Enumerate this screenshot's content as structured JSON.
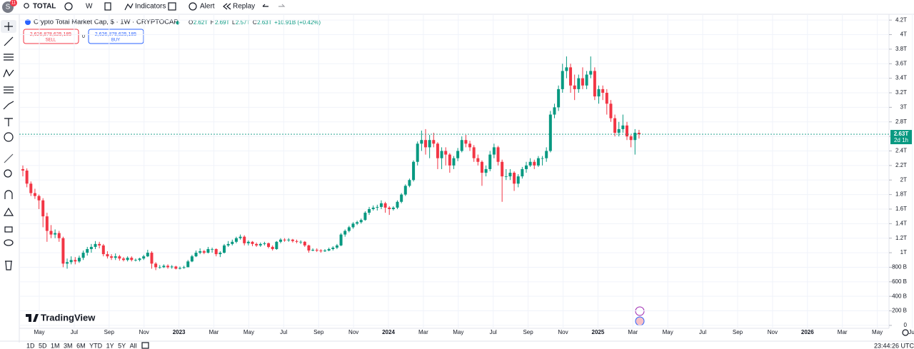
{
  "toolbar": {
    "avatar_badge": "11",
    "symbol": "TOTAL",
    "interval": "W",
    "indicators": "Indicators",
    "alert": "Alert",
    "replay": "Replay"
  },
  "legend": {
    "title": "Crypto Total Market Cap, $ · 1W · CRYPTOCAP",
    "items": [
      {
        "label": "O",
        "value": "2.62T"
      },
      {
        "label": "H",
        "value": "2.69T"
      },
      {
        "label": "L",
        "value": "2.57T"
      },
      {
        "label": "C",
        "value": "2.63T"
      }
    ],
    "change": "+10.91B (+0.42%)"
  },
  "trade": {
    "sell_price": "2,626,878,625,185",
    "sell_label": "SELL",
    "spread": "0",
    "buy_price": "2,626,878,625,185",
    "buy_label": "BUY"
  },
  "logo": "TradingView",
  "ranges": [
    "1D",
    "5D",
    "1M",
    "3M",
    "6M",
    "YTD",
    "1Y",
    "5Y",
    "All"
  ],
  "clock": "23:44:26 UTC",
  "chart_data": {
    "type": "candlestick",
    "up_color": "#089981",
    "down_color": "#f23645",
    "ylim": [
      -0.04,
      4.28
    ],
    "yticks": [
      0,
      {
        "value": 0.2,
        "label": "200 B"
      },
      {
        "value": 0.4,
        "label": "400 B"
      },
      {
        "value": 0.6,
        "label": "600 B"
      },
      {
        "value": 0.8,
        "label": "800 B"
      },
      {
        "value": 1,
        "label": "1T"
      },
      {
        "value": 1.2,
        "label": "1.2T"
      },
      {
        "value": 1.4,
        "label": "1.4T"
      },
      {
        "value": 1.6,
        "label": "1.6T"
      },
      {
        "value": 1.8,
        "label": "1.8T"
      },
      {
        "value": 2,
        "label": "2T"
      },
      {
        "value": 2.2,
        "label": "2.2T"
      },
      {
        "value": 2.4,
        "label": "2.4T"
      },
      {
        "value": 2.6,
        "label": "2.6T"
      },
      {
        "value": 2.8,
        "label": "2.8T"
      },
      {
        "value": 3,
        "label": "3T"
      },
      {
        "value": 3.2,
        "label": "3.2T"
      },
      {
        "value": 3.4,
        "label": "3.4T"
      },
      {
        "value": 3.6,
        "label": "3.6T"
      },
      {
        "value": 3.8,
        "label": "3.8T"
      },
      {
        "value": 4,
        "label": "4T"
      },
      {
        "value": 4.2,
        "label": "4.2T"
      }
    ],
    "xtick_labels": [
      "May",
      "Jul",
      "Sep",
      "Nov",
      "2023",
      "Mar",
      "May",
      "Jul",
      "Sep",
      "Nov",
      "2024",
      "Mar",
      "May",
      "Jul",
      "Sep",
      "Nov",
      "2025",
      "Mar",
      "May",
      "Jul",
      "Sep",
      "Nov",
      "2026",
      "Mar",
      "May",
      "Jul"
    ],
    "last_price": {
      "value": 2.63,
      "label": "2.63T",
      "countdown": "2d 1h"
    },
    "ohlc": [
      [
        2.15,
        2.2,
        2.05,
        2.13
      ],
      [
        2.13,
        2.16,
        1.9,
        1.95
      ],
      [
        1.95,
        1.98,
        1.78,
        1.82
      ],
      [
        1.82,
        1.88,
        1.74,
        1.78
      ],
      [
        1.78,
        1.8,
        1.6,
        1.72
      ],
      [
        1.72,
        1.75,
        1.35,
        1.5
      ],
      [
        1.5,
        1.55,
        1.15,
        1.3
      ],
      [
        1.3,
        1.38,
        1.2,
        1.25
      ],
      [
        1.25,
        1.32,
        1.2,
        1.27
      ],
      [
        1.27,
        1.3,
        1.15,
        1.2
      ],
      [
        1.2,
        1.22,
        0.8,
        0.85
      ],
      [
        0.85,
        0.92,
        0.78,
        0.87
      ],
      [
        0.87,
        0.95,
        0.84,
        0.9
      ],
      [
        0.9,
        0.94,
        0.84,
        0.88
      ],
      [
        0.88,
        0.96,
        0.86,
        0.93
      ],
      [
        0.93,
        1.03,
        0.9,
        1.0
      ],
      [
        1.0,
        1.08,
        0.96,
        1.05
      ],
      [
        1.05,
        1.12,
        1.0,
        1.08
      ],
      [
        1.08,
        1.16,
        1.05,
        1.12
      ],
      [
        1.12,
        1.15,
        1.06,
        1.1
      ],
      [
        1.1,
        1.12,
        0.95,
        0.98
      ],
      [
        0.98,
        1.02,
        0.92,
        0.95
      ],
      [
        0.95,
        0.98,
        0.9,
        0.93
      ],
      [
        0.93,
        0.99,
        0.9,
        0.95
      ],
      [
        0.95,
        0.97,
        0.89,
        0.92
      ],
      [
        0.92,
        0.94,
        0.88,
        0.9
      ],
      [
        0.9,
        0.95,
        0.88,
        0.93
      ],
      [
        0.93,
        0.95,
        0.88,
        0.9
      ],
      [
        0.9,
        0.92,
        0.88,
        0.9
      ],
      [
        0.9,
        0.93,
        0.88,
        0.92
      ],
      [
        0.92,
        0.97,
        0.9,
        0.95
      ],
      [
        0.95,
        1.04,
        0.94,
        1.0
      ],
      [
        1.0,
        1.02,
        0.78,
        0.85
      ],
      [
        0.85,
        0.87,
        0.76,
        0.8
      ],
      [
        0.8,
        0.83,
        0.78,
        0.8
      ],
      [
        0.8,
        0.84,
        0.79,
        0.82
      ],
      [
        0.82,
        0.84,
        0.78,
        0.8
      ],
      [
        0.8,
        0.83,
        0.78,
        0.81
      ],
      [
        0.81,
        0.82,
        0.77,
        0.78
      ],
      [
        0.78,
        0.81,
        0.77,
        0.79
      ],
      [
        0.79,
        0.82,
        0.78,
        0.8
      ],
      [
        0.8,
        0.9,
        0.8,
        0.88
      ],
      [
        0.88,
        0.97,
        0.87,
        0.95
      ],
      [
        0.95,
        1.03,
        0.94,
        1.0
      ],
      [
        1.0,
        1.06,
        0.98,
        1.02
      ],
      [
        1.02,
        1.04,
        0.98,
        1.0
      ],
      [
        1.0,
        1.08,
        0.99,
        1.05
      ],
      [
        1.05,
        1.07,
        1.0,
        1.05
      ],
      [
        1.05,
        1.06,
        0.95,
        0.98
      ],
      [
        0.98,
        1.02,
        0.94,
        1.0
      ],
      [
        1.0,
        1.12,
        0.99,
        1.1
      ],
      [
        1.1,
        1.16,
        1.08,
        1.12
      ],
      [
        1.12,
        1.18,
        1.1,
        1.15
      ],
      [
        1.15,
        1.22,
        1.13,
        1.2
      ],
      [
        1.2,
        1.25,
        1.18,
        1.22
      ],
      [
        1.22,
        1.24,
        1.1,
        1.13
      ],
      [
        1.13,
        1.17,
        1.1,
        1.15
      ],
      [
        1.15,
        1.16,
        1.09,
        1.12
      ],
      [
        1.12,
        1.14,
        1.08,
        1.1
      ],
      [
        1.1,
        1.14,
        1.08,
        1.12
      ],
      [
        1.12,
        1.15,
        1.1,
        1.13
      ],
      [
        1.13,
        1.14,
        1.06,
        1.08
      ],
      [
        1.08,
        1.1,
        1.03,
        1.05
      ],
      [
        1.05,
        1.16,
        1.04,
        1.15
      ],
      [
        1.15,
        1.2,
        1.13,
        1.18
      ],
      [
        1.18,
        1.2,
        1.15,
        1.17
      ],
      [
        1.17,
        1.2,
        1.15,
        1.18
      ],
      [
        1.18,
        1.19,
        1.14,
        1.16
      ],
      [
        1.16,
        1.18,
        1.13,
        1.15
      ],
      [
        1.15,
        1.17,
        1.12,
        1.15
      ],
      [
        1.15,
        1.16,
        1.08,
        1.1
      ],
      [
        1.1,
        1.11,
        1.0,
        1.03
      ],
      [
        1.03,
        1.06,
        1.02,
        1.04
      ],
      [
        1.04,
        1.06,
        1.01,
        1.03
      ],
      [
        1.03,
        1.05,
        1.0,
        1.02
      ],
      [
        1.02,
        1.05,
        1.01,
        1.03
      ],
      [
        1.03,
        1.07,
        1.02,
        1.05
      ],
      [
        1.05,
        1.09,
        1.03,
        1.07
      ],
      [
        1.07,
        1.12,
        1.05,
        1.1
      ],
      [
        1.1,
        1.27,
        1.09,
        1.25
      ],
      [
        1.25,
        1.32,
        1.22,
        1.3
      ],
      [
        1.3,
        1.37,
        1.28,
        1.35
      ],
      [
        1.35,
        1.42,
        1.33,
        1.4
      ],
      [
        1.4,
        1.44,
        1.38,
        1.42
      ],
      [
        1.42,
        1.47,
        1.4,
        1.45
      ],
      [
        1.45,
        1.57,
        1.44,
        1.55
      ],
      [
        1.55,
        1.63,
        1.52,
        1.6
      ],
      [
        1.6,
        1.65,
        1.58,
        1.62
      ],
      [
        1.62,
        1.66,
        1.58,
        1.63
      ],
      [
        1.63,
        1.72,
        1.6,
        1.68
      ],
      [
        1.68,
        1.7,
        1.55,
        1.62
      ],
      [
        1.62,
        1.64,
        1.52,
        1.6
      ],
      [
        1.6,
        1.64,
        1.58,
        1.62
      ],
      [
        1.62,
        1.72,
        1.6,
        1.7
      ],
      [
        1.7,
        1.82,
        1.68,
        1.8
      ],
      [
        1.8,
        1.94,
        1.78,
        1.92
      ],
      [
        1.92,
        2.02,
        1.9,
        2.0
      ],
      [
        2.0,
        2.27,
        1.98,
        2.25
      ],
      [
        2.25,
        2.53,
        2.2,
        2.5
      ],
      [
        2.5,
        2.68,
        2.4,
        2.55
      ],
      [
        2.55,
        2.7,
        2.35,
        2.45
      ],
      [
        2.45,
        2.62,
        2.3,
        2.55
      ],
      [
        2.55,
        2.65,
        2.45,
        2.5
      ],
      [
        2.5,
        2.52,
        2.15,
        2.3
      ],
      [
        2.3,
        2.45,
        2.15,
        2.4
      ],
      [
        2.4,
        2.45,
        2.2,
        2.35
      ],
      [
        2.35,
        2.37,
        2.1,
        2.2
      ],
      [
        2.2,
        2.33,
        2.15,
        2.3
      ],
      [
        2.3,
        2.44,
        2.26,
        2.4
      ],
      [
        2.4,
        2.6,
        2.38,
        2.55
      ],
      [
        2.55,
        2.62,
        2.45,
        2.5
      ],
      [
        2.5,
        2.54,
        2.4,
        2.45
      ],
      [
        2.45,
        2.48,
        2.25,
        2.3
      ],
      [
        2.3,
        2.35,
        2.2,
        2.25
      ],
      [
        2.25,
        2.27,
        1.92,
        2.1
      ],
      [
        2.1,
        2.2,
        2.05,
        2.15
      ],
      [
        2.15,
        2.4,
        2.12,
        2.35
      ],
      [
        2.35,
        2.5,
        2.3,
        2.45
      ],
      [
        2.45,
        2.47,
        2.2,
        2.25
      ],
      [
        2.25,
        2.28,
        1.7,
        2.05
      ],
      [
        2.05,
        2.15,
        2.0,
        2.05
      ],
      [
        2.05,
        2.15,
        2.0,
        2.1
      ],
      [
        2.1,
        2.12,
        1.85,
        1.95
      ],
      [
        1.95,
        2.08,
        1.9,
        2.05
      ],
      [
        2.05,
        2.18,
        2.02,
        2.15
      ],
      [
        2.15,
        2.25,
        2.1,
        2.2
      ],
      [
        2.2,
        2.3,
        2.18,
        2.25
      ],
      [
        2.25,
        2.28,
        2.15,
        2.2
      ],
      [
        2.2,
        2.33,
        2.18,
        2.3
      ],
      [
        2.3,
        2.33,
        2.2,
        2.3
      ],
      [
        2.3,
        2.45,
        2.25,
        2.4
      ],
      [
        2.4,
        2.95,
        2.38,
        2.9
      ],
      [
        2.9,
        3.05,
        2.85,
        3.0
      ],
      [
        3.0,
        3.3,
        2.95,
        3.25
      ],
      [
        3.25,
        3.6,
        3.2,
        3.5
      ],
      [
        3.5,
        3.7,
        3.4,
        3.55
      ],
      [
        3.55,
        3.6,
        3.2,
        3.3
      ],
      [
        3.3,
        3.45,
        3.1,
        3.25
      ],
      [
        3.25,
        3.45,
        3.2,
        3.4
      ],
      [
        3.4,
        3.55,
        3.25,
        3.3
      ],
      [
        3.3,
        3.5,
        3.25,
        3.45
      ],
      [
        3.45,
        3.7,
        3.4,
        3.5
      ],
      [
        3.5,
        3.55,
        3.1,
        3.15
      ],
      [
        3.15,
        3.3,
        3.05,
        3.25
      ],
      [
        3.25,
        3.3,
        3.1,
        3.2
      ],
      [
        3.2,
        3.25,
        2.9,
        3.05
      ],
      [
        3.05,
        3.1,
        2.8,
        2.85
      ],
      [
        2.85,
        2.9,
        2.6,
        2.65
      ],
      [
        2.65,
        2.8,
        2.6,
        2.7
      ],
      [
        2.7,
        2.9,
        2.65,
        2.75
      ],
      [
        2.75,
        2.8,
        2.55,
        2.6
      ],
      [
        2.6,
        2.62,
        2.45,
        2.55
      ],
      [
        2.55,
        2.7,
        2.35,
        2.65
      ],
      [
        2.65,
        2.69,
        2.57,
        2.63
      ]
    ]
  }
}
